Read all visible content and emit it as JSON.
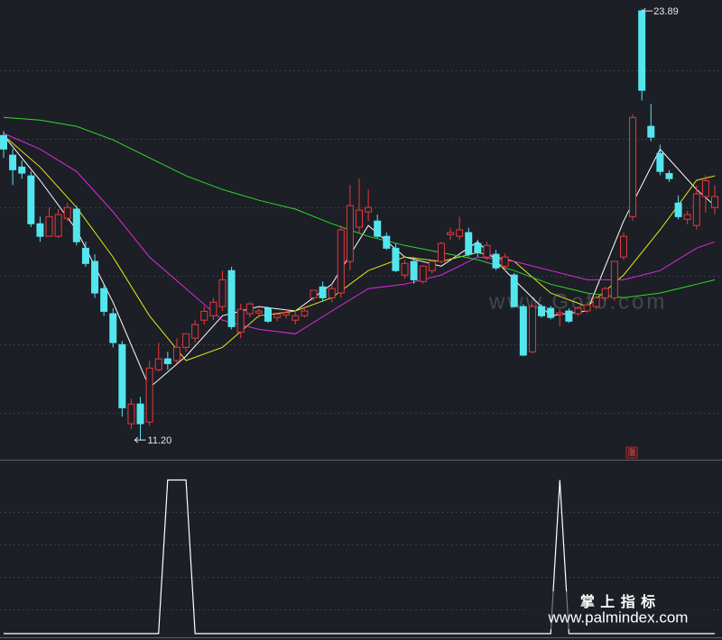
{
  "chart_data": [
    {
      "type": "candlestick",
      "open": [
        20.17,
        19.59,
        19.24,
        18.98,
        17.57,
        17.2,
        17.2,
        17.73,
        18.0,
        16.85,
        16.46,
        15.66,
        14.92,
        14.01,
        11.68,
        12.26,
        11.73,
        13.27,
        13.59,
        13.54,
        13.93,
        14.2,
        14.73,
        14.86,
        15.13,
        16.19,
        14.38,
        14.92,
        14.94,
        15.08,
        14.81,
        14.88,
        14.73,
        14.86,
        15.39,
        15.71,
        15.39,
        15.53,
        16.46,
        17.47,
        17.92,
        17.65,
        17.2,
        16.85,
        16.06,
        16.46,
        15.87,
        16.19,
        16.46,
        17.25,
        17.2,
        17.31,
        16.99,
        16.59,
        16.67,
        16.32,
        16.06,
        15.13,
        13.8,
        15.13,
        15.08,
        14.9,
        15.0,
        14.92,
        15.0,
        15.13,
        15.39,
        15.39,
        16.59,
        17.78,
        23.84,
        20.44,
        19.64,
        19.05,
        18.18,
        17.7,
        17.52,
        18.37,
        18.05
      ],
      "high": [
        20.3,
        19.77,
        19.43,
        19.11,
        17.78,
        18.05,
        18.0,
        18.18,
        18.1,
        17.04,
        16.67,
        15.79,
        15.08,
        14.12,
        12.42,
        12.47,
        13.54,
        14.07,
        13.8,
        14.2,
        14.33,
        14.73,
        15.13,
        15.39,
        16.19,
        16.3,
        15.21,
        15.26,
        15.08,
        15.13,
        14.94,
        15.05,
        15.0,
        15.13,
        15.61,
        15.87,
        15.79,
        17.52,
        18.71,
        18.9,
        18.58,
        17.84,
        17.31,
        16.99,
        16.5,
        16.59,
        16.35,
        16.5,
        17.04,
        17.45,
        17.78,
        17.45,
        17.1,
        17.04,
        16.8,
        16.7,
        16.12,
        15.2,
        15.2,
        15.2,
        15.15,
        15.05,
        15.08,
        15.13,
        15.25,
        15.45,
        15.71,
        16.46,
        17.31,
        20.8,
        23.89,
        21.1,
        19.9,
        19.15,
        18.4,
        17.95,
        18.7,
        19.0,
        18.7
      ],
      "low": [
        19.51,
        18.71,
        18.9,
        17.47,
        17.04,
        17.2,
        17.15,
        17.65,
        16.93,
        16.3,
        15.39,
        14.86,
        13.93,
        11.89,
        11.52,
        11.2,
        11.62,
        13.22,
        13.27,
        13.45,
        13.8,
        14.07,
        14.6,
        14.73,
        15.0,
        14.46,
        14.2,
        14.81,
        14.8,
        14.65,
        14.7,
        14.78,
        14.6,
        14.81,
        15.3,
        15.3,
        15.26,
        15.39,
        16.2,
        17.3,
        17.65,
        17.15,
        16.8,
        16.15,
        15.95,
        15.8,
        15.8,
        16.1,
        16.4,
        17.1,
        17.1,
        16.6,
        16.6,
        16.5,
        16.2,
        16.2,
        15.1,
        13.67,
        13.75,
        14.8,
        14.75,
        14.55,
        14.65,
        14.85,
        14.95,
        15.05,
        15.3,
        15.3,
        16.5,
        17.65,
        21.2,
        20.0,
        19.0,
        18.8,
        17.7,
        17.55,
        17.4,
        17.9,
        17.85
      ],
      "close": [
        19.77,
        19.16,
        19.06,
        17.57,
        17.2,
        17.78,
        17.84,
        18.05,
        17.04,
        16.4,
        15.53,
        14.99,
        14.07,
        12.15,
        12.26,
        11.68,
        13.32,
        13.59,
        13.45,
        13.93,
        14.33,
        14.6,
        14.99,
        15.26,
        15.92,
        14.54,
        15.05,
        15.21,
        15.0,
        14.7,
        14.9,
        14.95,
        14.86,
        15.0,
        15.61,
        15.39,
        15.66,
        17.39,
        18.1,
        17.97,
        18.05,
        17.2,
        16.85,
        16.19,
        16.4,
        15.92,
        16.32,
        16.46,
        16.99,
        17.31,
        17.39,
        16.67,
        16.72,
        16.93,
        16.27,
        16.59,
        15.13,
        13.7,
        15.13,
        14.86,
        14.81,
        14.95,
        14.7,
        15.08,
        15.18,
        15.39,
        15.66,
        16.46,
        17.2,
        20.7,
        21.5,
        20.12,
        19.11,
        18.9,
        17.78,
        17.84,
        18.45,
        18.84,
        18.37
      ],
      "up_color": "#e8383d",
      "down_color": "#54e6ee",
      "ylim": [
        10.62,
        24.16
      ],
      "grid": true,
      "series": [
        {
          "color": "#ffffff",
          "x": [
            0,
            4,
            8,
            12,
            16,
            20,
            24,
            28,
            32,
            36,
            40,
            44,
            48,
            52,
            56,
            60,
            64,
            68,
            72,
            76,
            78
          ],
          "values": [
            20.17,
            18.85,
            17.39,
            15.26,
            12.74,
            13.67,
            14.86,
            15.13,
            15.0,
            15.79,
            17.52,
            16.59,
            16.32,
            17.04,
            15.92,
            14.86,
            15.0,
            17.65,
            19.77,
            18.58,
            18.1
          ]
        },
        {
          "color": "#e6e619",
          "x": [
            0,
            4,
            8,
            12,
            16,
            20,
            24,
            28,
            32,
            36,
            40,
            44,
            48,
            52,
            56,
            60,
            64,
            68,
            72,
            76,
            78
          ],
          "values": [
            20.17,
            19.24,
            18.05,
            16.59,
            14.86,
            13.54,
            13.93,
            14.86,
            15.0,
            15.39,
            16.19,
            16.59,
            16.46,
            16.72,
            16.46,
            15.53,
            15.13,
            16.06,
            17.39,
            18.85,
            18.98
          ]
        },
        {
          "color": "#e028e0",
          "x": [
            0,
            4,
            8,
            12,
            16,
            20,
            24,
            28,
            32,
            36,
            40,
            44,
            48,
            52,
            56,
            60,
            64,
            68,
            72,
            76,
            78
          ],
          "values": [
            20.23,
            19.77,
            19.11,
            17.92,
            16.59,
            15.66,
            14.73,
            14.46,
            14.33,
            15.0,
            15.66,
            15.79,
            16.06,
            16.59,
            16.46,
            16.19,
            15.92,
            15.92,
            16.19,
            16.85,
            17.04
          ]
        },
        {
          "color": "#2ed62e",
          "x": [
            0,
            4,
            8,
            12,
            16,
            20,
            24,
            28,
            32,
            36,
            40,
            44,
            48,
            52,
            56,
            60,
            64,
            68,
            72,
            76,
            78
          ],
          "values": [
            20.7,
            20.62,
            20.44,
            20.04,
            19.51,
            18.98,
            18.58,
            18.26,
            18.0,
            17.57,
            17.2,
            16.93,
            16.72,
            16.51,
            16.19,
            15.79,
            15.53,
            15.39,
            15.53,
            15.79,
            15.92
          ]
        }
      ],
      "high_label": "23.89",
      "low_label": "11.20",
      "badge": "涨",
      "watermark": "www.Gofo.com"
    },
    {
      "type": "line",
      "color": "#ffffff",
      "ylim": [
        -0.03,
        1.12
      ],
      "grid": true,
      "values": [
        0,
        0,
        0,
        0,
        0,
        0,
        0,
        0,
        0,
        0,
        0,
        0,
        0,
        0,
        0,
        0,
        0,
        0,
        1,
        1,
        1,
        0,
        0,
        0,
        0,
        0,
        0,
        0,
        0,
        0,
        0,
        0,
        0,
        0,
        0,
        0,
        0,
        0,
        0,
        0,
        0,
        0,
        0,
        0,
        0,
        0,
        0,
        0,
        0,
        0,
        0,
        0,
        0,
        0,
        0,
        0,
        0,
        0,
        0,
        0,
        0,
        1,
        0,
        0,
        0,
        0,
        0,
        0,
        0,
        0,
        0,
        0,
        0,
        0,
        0,
        0,
        0,
        0,
        0
      ]
    }
  ],
  "footer": {
    "title": "掌 上 指 标",
    "url": "www.palmindex.com"
  }
}
